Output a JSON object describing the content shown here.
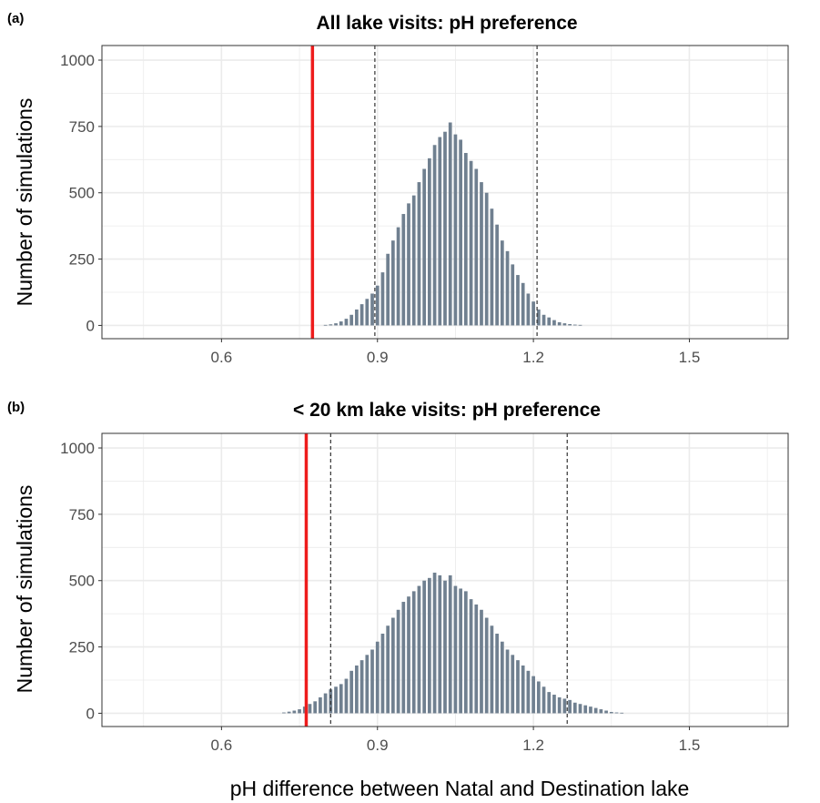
{
  "figure": {
    "xlabel": "pH difference between Natal and Destination lake",
    "colors": {
      "bar": "#708090",
      "observed_line": "#ee1c1c",
      "ci_line": "#333333",
      "grid": "#ebebeb",
      "frame": "#333333"
    }
  },
  "chart_data": [
    {
      "type": "bar",
      "tag": "(a)",
      "title": "All lake visits: pH preference",
      "ylabel": "Number of simulations",
      "xlim": [
        0.37,
        1.69
      ],
      "ylim": [
        -50,
        1055
      ],
      "x_ticks": [
        0.6,
        0.9,
        1.2,
        1.5
      ],
      "x_tick_labels": [
        "0.6",
        "0.9",
        "1.2",
        "1.5"
      ],
      "y_ticks": [
        0,
        250,
        500,
        750,
        1000
      ],
      "y_tick_labels": [
        "0",
        "250",
        "500",
        "750",
        "1000"
      ],
      "grid": true,
      "bin_width": 0.01,
      "x": [
        0.8,
        0.81,
        0.82,
        0.83,
        0.84,
        0.85,
        0.86,
        0.87,
        0.88,
        0.89,
        0.9,
        0.91,
        0.92,
        0.93,
        0.94,
        0.95,
        0.96,
        0.97,
        0.98,
        0.99,
        1.0,
        1.01,
        1.02,
        1.03,
        1.04,
        1.05,
        1.06,
        1.07,
        1.08,
        1.09,
        1.1,
        1.11,
        1.12,
        1.13,
        1.14,
        1.15,
        1.16,
        1.17,
        1.18,
        1.19,
        1.2,
        1.21,
        1.22,
        1.23,
        1.24,
        1.25,
        1.26,
        1.27,
        1.28,
        1.29
      ],
      "values": [
        2,
        4,
        8,
        15,
        25,
        40,
        60,
        80,
        100,
        120,
        150,
        200,
        270,
        320,
        370,
        420,
        460,
        490,
        540,
        590,
        630,
        680,
        710,
        730,
        765,
        720,
        700,
        650,
        620,
        590,
        540,
        500,
        440,
        380,
        320,
        280,
        230,
        190,
        160,
        120,
        90,
        60,
        40,
        30,
        20,
        12,
        8,
        5,
        3,
        2
      ],
      "observed_value": 0.775,
      "ci": [
        0.895,
        1.207
      ]
    },
    {
      "type": "bar",
      "tag": "(b)",
      "title": "< 20 km lake visits: pH preference",
      "ylabel": "Number of simulations",
      "xlim": [
        0.37,
        1.69
      ],
      "ylim": [
        -50,
        1055
      ],
      "x_ticks": [
        0.6,
        0.9,
        1.2,
        1.5
      ],
      "x_tick_labels": [
        "0.6",
        "0.9",
        "1.2",
        "1.5"
      ],
      "y_ticks": [
        0,
        250,
        500,
        750,
        1000
      ],
      "y_tick_labels": [
        "0",
        "250",
        "500",
        "750",
        "1000"
      ],
      "grid": true,
      "bin_width": 0.01,
      "x": [
        0.72,
        0.73,
        0.74,
        0.75,
        0.76,
        0.77,
        0.78,
        0.79,
        0.8,
        0.81,
        0.82,
        0.83,
        0.84,
        0.85,
        0.86,
        0.87,
        0.88,
        0.89,
        0.9,
        0.91,
        0.92,
        0.93,
        0.94,
        0.95,
        0.96,
        0.97,
        0.98,
        0.99,
        1.0,
        1.01,
        1.02,
        1.03,
        1.04,
        1.05,
        1.06,
        1.07,
        1.08,
        1.09,
        1.1,
        1.11,
        1.12,
        1.13,
        1.14,
        1.15,
        1.16,
        1.17,
        1.18,
        1.19,
        1.2,
        1.21,
        1.22,
        1.23,
        1.24,
        1.25,
        1.26,
        1.27,
        1.28,
        1.29,
        1.3,
        1.31,
        1.32,
        1.33,
        1.34,
        1.35,
        1.36,
        1.37
      ],
      "values": [
        3,
        6,
        10,
        15,
        25,
        35,
        45,
        60,
        75,
        90,
        100,
        110,
        130,
        160,
        180,
        200,
        220,
        240,
        270,
        300,
        330,
        360,
        390,
        420,
        440,
        460,
        480,
        500,
        510,
        530,
        520,
        500,
        520,
        480,
        470,
        460,
        430,
        410,
        390,
        360,
        330,
        300,
        270,
        240,
        220,
        200,
        180,
        160,
        140,
        120,
        100,
        80,
        70,
        60,
        55,
        50,
        40,
        35,
        30,
        25,
        20,
        15,
        10,
        5,
        3,
        2
      ],
      "observed_value": 0.763,
      "ci": [
        0.81,
        1.265
      ]
    }
  ]
}
